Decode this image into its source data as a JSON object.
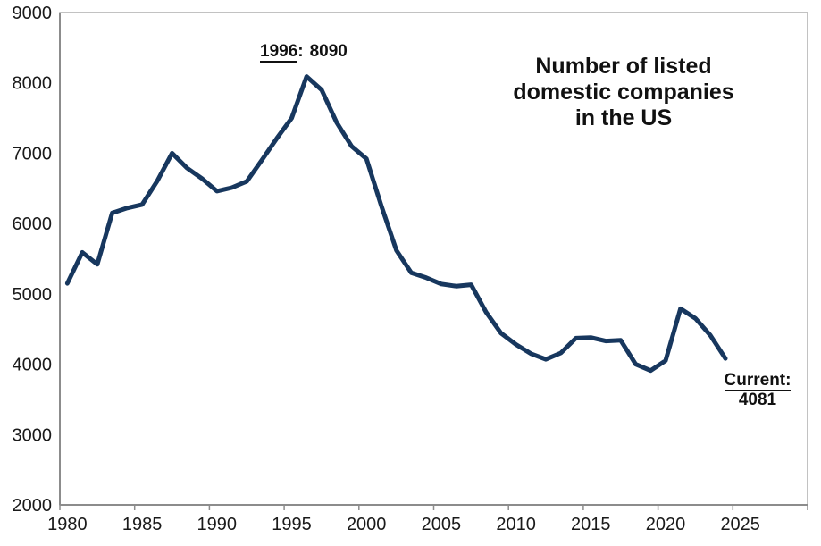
{
  "chart_data": {
    "type": "line",
    "title": "Number of listed domestic companies in the US",
    "title_lines": [
      "Number of listed",
      "domestic companies",
      "in the US"
    ],
    "xlabel": "",
    "ylabel": "",
    "grid": false,
    "legend": false,
    "ylim": [
      2000,
      9000
    ],
    "xlim_years": [
      1980,
      2029
    ],
    "y_ticks": [
      2000,
      3000,
      4000,
      5000,
      6000,
      7000,
      8000,
      9000
    ],
    "x_ticks": [
      1980,
      1985,
      1990,
      1995,
      2000,
      2005,
      2010,
      2015,
      2020,
      2025
    ],
    "x": [
      1980,
      1981,
      1982,
      1983,
      1984,
      1985,
      1986,
      1987,
      1988,
      1989,
      1990,
      1991,
      1992,
      1993,
      1994,
      1995,
      1996,
      1997,
      1998,
      1999,
      2000,
      2001,
      2002,
      2003,
      2004,
      2005,
      2006,
      2007,
      2008,
      2009,
      2010,
      2011,
      2012,
      2013,
      2014,
      2015,
      2016,
      2017,
      2018,
      2019,
      2020,
      2021,
      2022,
      2023,
      2024
    ],
    "values": [
      5150,
      5590,
      5420,
      6150,
      6220,
      6270,
      6600,
      7000,
      6790,
      6640,
      6460,
      6510,
      6600,
      6900,
      7210,
      7500,
      8090,
      7900,
      7440,
      7100,
      6920,
      6250,
      5620,
      5300,
      5230,
      5140,
      5110,
      5130,
      4740,
      4440,
      4280,
      4150,
      4070,
      4160,
      4370,
      4380,
      4330,
      4340,
      4000,
      3910,
      4050,
      4790,
      4650,
      4410,
      4081
    ],
    "annotations": {
      "peak": {
        "underlined": "1996",
        "separator": ":",
        "value": "8090"
      },
      "current": {
        "underlined": "Current:",
        "value": "4081"
      }
    },
    "colors": {
      "line": "#17375E",
      "axis": "#8C8C8C",
      "frame": "#ADADAD",
      "text": "#1A1A1A"
    }
  }
}
